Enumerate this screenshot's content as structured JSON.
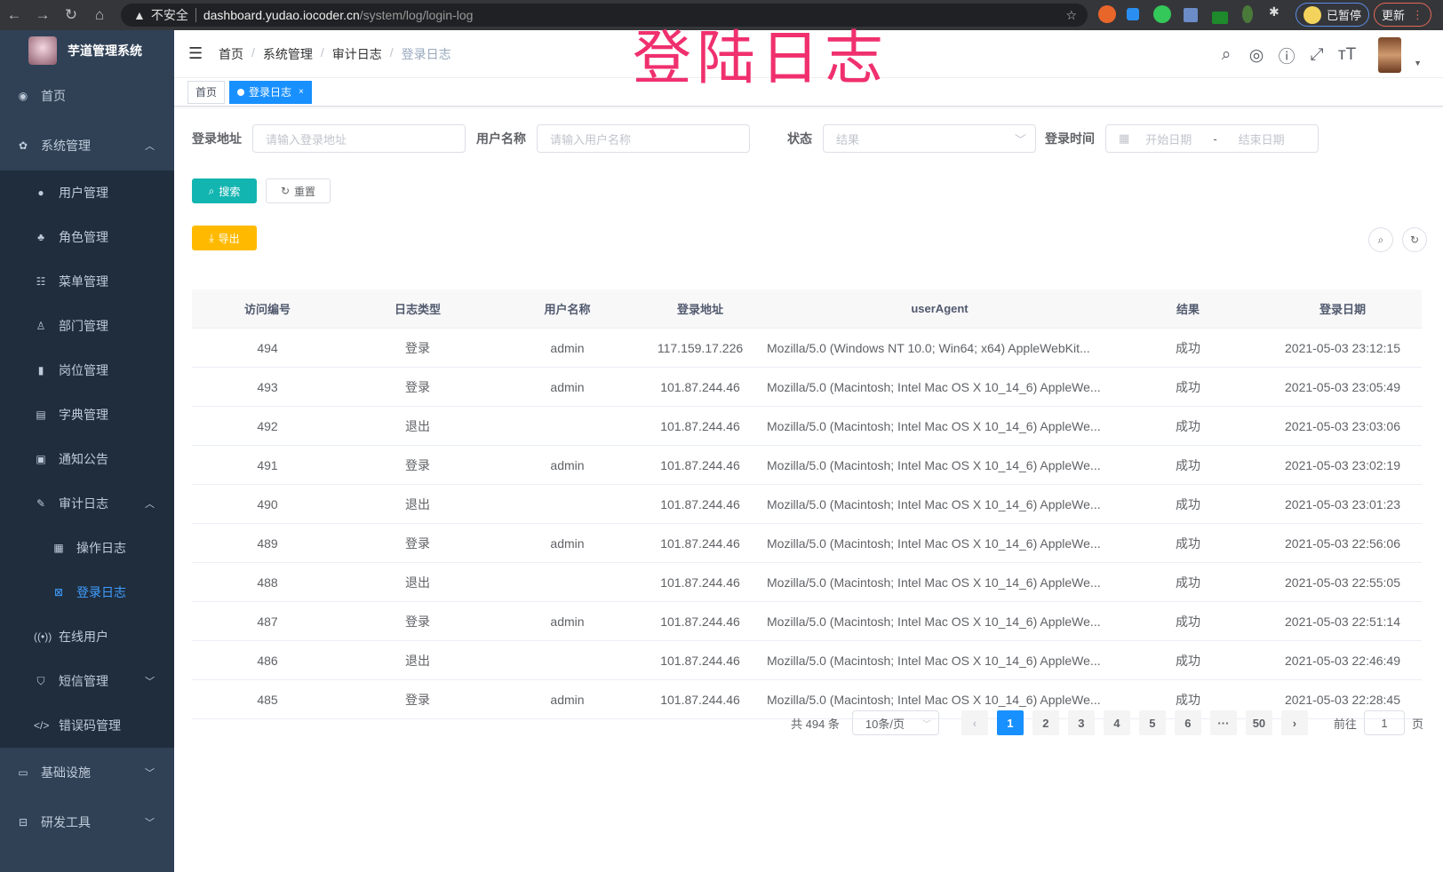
{
  "browser": {
    "security": "不安全",
    "host": "dashboard.yudao.iocoder.cn",
    "path": "/system/log/login-log",
    "profile": "已暂停",
    "update": "更新"
  },
  "overlay_title": "登陆日志",
  "sidebar": {
    "title": "芋道管理系统",
    "items": [
      {
        "label": "首页",
        "icon": "dashboard-icon"
      },
      {
        "label": "系统管理",
        "icon": "gear-icon",
        "expanded": true,
        "children": [
          {
            "label": "用户管理",
            "icon": "user-icon"
          },
          {
            "label": "角色管理",
            "icon": "peoples-icon"
          },
          {
            "label": "菜单管理",
            "icon": "tree-table-icon"
          },
          {
            "label": "部门管理",
            "icon": "tree-icon"
          },
          {
            "label": "岗位管理",
            "icon": "post-icon"
          },
          {
            "label": "字典管理",
            "icon": "dict-icon"
          },
          {
            "label": "通知公告",
            "icon": "message-icon"
          },
          {
            "label": "审计日志",
            "icon": "log-icon",
            "expanded": true,
            "children": [
              {
                "label": "操作日志",
                "icon": "form-icon"
              },
              {
                "label": "登录日志",
                "icon": "logininfor-icon",
                "active": true
              }
            ]
          },
          {
            "label": "在线用户",
            "icon": "online-icon"
          },
          {
            "label": "短信管理",
            "icon": "validcode-icon"
          },
          {
            "label": "错误码管理",
            "icon": "code-icon"
          }
        ]
      },
      {
        "label": "基础设施",
        "icon": "monitor-icon"
      },
      {
        "label": "研发工具",
        "icon": "tool-icon"
      }
    ]
  },
  "breadcrumb": [
    "首页",
    "系统管理",
    "审计日志",
    "登录日志"
  ],
  "tags": [
    {
      "label": "首页"
    },
    {
      "label": "登录日志",
      "active": true
    }
  ],
  "search": {
    "addr_label": "登录地址",
    "addr_placeholder": "请输入登录地址",
    "user_label": "用户名称",
    "user_placeholder": "请输入用户名称",
    "status_label": "状态",
    "status_placeholder": "结果",
    "time_label": "登录时间",
    "start_placeholder": "开始日期",
    "sep": "-",
    "end_placeholder": "结束日期",
    "search_btn": "搜索",
    "reset_btn": "重置",
    "export_btn": "导出"
  },
  "table": {
    "columns": [
      "访问编号",
      "日志类型",
      "用户名称",
      "登录地址",
      "userAgent",
      "结果",
      "登录日期"
    ],
    "rows": [
      [
        "494",
        "登录",
        "admin",
        "117.159.17.226",
        "Mozilla/5.0 (Windows NT 10.0; Win64; x64) AppleWebKit...",
        "成功",
        "2021-05-03 23:12:15"
      ],
      [
        "493",
        "登录",
        "admin",
        "101.87.244.46",
        "Mozilla/5.0 (Macintosh; Intel Mac OS X 10_14_6) AppleWe...",
        "成功",
        "2021-05-03 23:05:49"
      ],
      [
        "492",
        "退出",
        "",
        "101.87.244.46",
        "Mozilla/5.0 (Macintosh; Intel Mac OS X 10_14_6) AppleWe...",
        "成功",
        "2021-05-03 23:03:06"
      ],
      [
        "491",
        "登录",
        "admin",
        "101.87.244.46",
        "Mozilla/5.0 (Macintosh; Intel Mac OS X 10_14_6) AppleWe...",
        "成功",
        "2021-05-03 23:02:19"
      ],
      [
        "490",
        "退出",
        "",
        "101.87.244.46",
        "Mozilla/5.0 (Macintosh; Intel Mac OS X 10_14_6) AppleWe...",
        "成功",
        "2021-05-03 23:01:23"
      ],
      [
        "489",
        "登录",
        "admin",
        "101.87.244.46",
        "Mozilla/5.0 (Macintosh; Intel Mac OS X 10_14_6) AppleWe...",
        "成功",
        "2021-05-03 22:56:06"
      ],
      [
        "488",
        "退出",
        "",
        "101.87.244.46",
        "Mozilla/5.0 (Macintosh; Intel Mac OS X 10_14_6) AppleWe...",
        "成功",
        "2021-05-03 22:55:05"
      ],
      [
        "487",
        "登录",
        "admin",
        "101.87.244.46",
        "Mozilla/5.0 (Macintosh; Intel Mac OS X 10_14_6) AppleWe...",
        "成功",
        "2021-05-03 22:51:14"
      ],
      [
        "486",
        "退出",
        "",
        "101.87.244.46",
        "Mozilla/5.0 (Macintosh; Intel Mac OS X 10_14_6) AppleWe...",
        "成功",
        "2021-05-03 22:46:49"
      ],
      [
        "485",
        "登录",
        "admin",
        "101.87.244.46",
        "Mozilla/5.0 (Macintosh; Intel Mac OS X 10_14_6) AppleWe...",
        "成功",
        "2021-05-03 22:28:45"
      ]
    ]
  },
  "pagination": {
    "total": "共 494 条",
    "page_size": "10条/页",
    "pages": [
      "1",
      "2",
      "3",
      "4",
      "5",
      "6",
      "···",
      "50"
    ],
    "current": "1",
    "goto_label": "前往",
    "goto_value": "1",
    "page_suffix": "页"
  },
  "colors": {
    "sidebar": "#304156",
    "active": "#409eff",
    "primary": "#1890ff",
    "search": "#13b5b1",
    "export": "#ffba00",
    "overlay": "#f0306e"
  }
}
